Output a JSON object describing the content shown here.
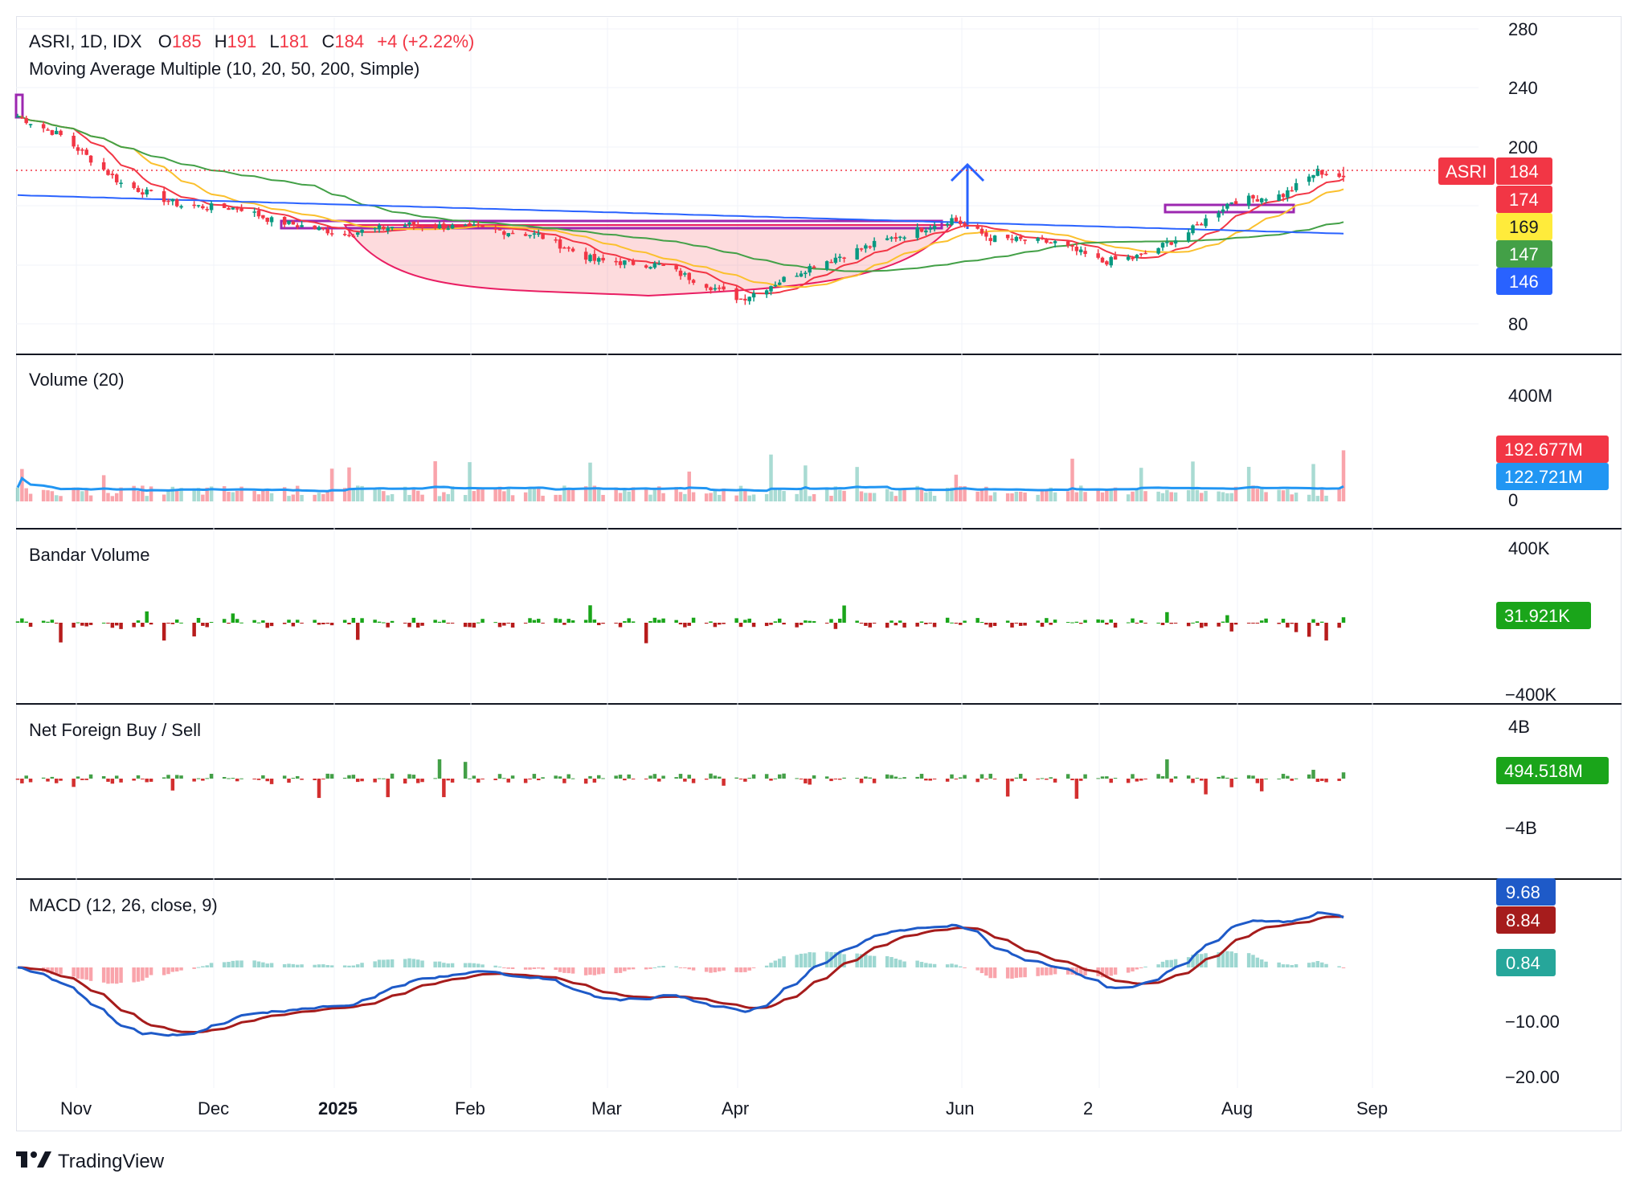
{
  "header": {
    "symbol_line_prefix": "ASRI, 1D, IDX",
    "open_label": "O",
    "open": "185",
    "high_label": "H",
    "high": "191",
    "low_label": "L",
    "low": "181",
    "close_label": "C",
    "close": "184",
    "change": "+4 (+2.22%)",
    "ma_title": "Moving Average Multiple (10, 20, 50, 200, Simple)"
  },
  "panes": {
    "volume_title": "Volume (20)",
    "bandar_title": "Bandar Volume",
    "foreign_title": "Net Foreign Buy / Sell",
    "macd_title": "MACD (12, 26, close, 9)"
  },
  "price_axis": [
    "280",
    "240",
    "200",
    "80"
  ],
  "volume_axis": [
    "400M",
    "0"
  ],
  "bandar_axis": [
    "400K",
    "−400K"
  ],
  "foreign_axis": [
    "4B",
    "−4B"
  ],
  "macd_axis": [
    "−10.00",
    "−20.00"
  ],
  "tags": {
    "symbol": "ASRI",
    "price": "184",
    "ma10": "174",
    "ma20": "169",
    "ma50": "147",
    "ma200": "146",
    "vol": "192.677M",
    "vol_ma": "122.721M",
    "bandar": "31.921K",
    "foreign": "494.518M",
    "macd": "9.68",
    "signal": "8.84",
    "hist": "0.84"
  },
  "x_axis": [
    "Nov",
    "Dec",
    "2025",
    "Feb",
    "Mar",
    "Apr",
    "Jun",
    "2",
    "Aug",
    "Sep"
  ],
  "branding": {
    "name": "TradingView"
  },
  "colors": {
    "up": "#089981",
    "down": "#f23645",
    "ma10": "#f23645",
    "ma20": "#fbc02d",
    "ma50": "#43a047",
    "ma200": "#2962ff",
    "vol_ma": "#2196f3",
    "bandar_up": "#1aa51a",
    "bandar_down": "#b71c1c",
    "foreign_up": "#43a047",
    "foreign_down": "#d32f2f",
    "macd": "#1e5ac8",
    "signal": "#a61c1c",
    "pattern": "#9c27b0",
    "arrow": "#2962ff"
  },
  "chart_data": [
    {
      "type": "candlestick",
      "title": "ASRI, 1D, IDX",
      "x_range": [
        "2024-10-22",
        "2025-08-26"
      ],
      "ylim": [
        80,
        280
      ],
      "price_path_nodes": [
        {
          "date": "2024-10-22",
          "close": 225
        },
        {
          "date": "2024-11-01",
          "close": 212
        },
        {
          "date": "2024-11-15",
          "close": 180
        },
        {
          "date": "2024-11-29",
          "close": 165
        },
        {
          "date": "2024-12-13",
          "close": 163
        },
        {
          "date": "2024-12-20",
          "close": 155
        },
        {
          "date": "2025-01-06",
          "close": 146
        },
        {
          "date": "2025-01-20",
          "close": 152
        },
        {
          "date": "2025-02-05",
          "close": 150
        },
        {
          "date": "2025-02-20",
          "close": 145
        },
        {
          "date": "2025-03-05",
          "close": 128
        },
        {
          "date": "2025-03-20",
          "close": 125
        },
        {
          "date": "2025-04-08",
          "close": 102
        },
        {
          "date": "2025-04-25",
          "close": 125
        },
        {
          "date": "2025-05-10",
          "close": 140
        },
        {
          "date": "2025-05-27",
          "close": 156
        },
        {
          "date": "2025-06-05",
          "close": 143
        },
        {
          "date": "2025-06-20",
          "close": 140
        },
        {
          "date": "2025-07-01",
          "close": 127
        },
        {
          "date": "2025-07-10",
          "close": 131
        },
        {
          "date": "2025-07-20",
          "close": 145
        },
        {
          "date": "2025-07-31",
          "close": 168
        },
        {
          "date": "2025-08-12",
          "close": 172
        },
        {
          "date": "2025-08-20",
          "close": 188
        },
        {
          "date": "2025-08-26",
          "close": 184
        }
      ],
      "last_bar": {
        "open": 185,
        "high": 191,
        "low": 181,
        "close": 184
      },
      "moving_averages": {
        "ma10": 174,
        "ma20": 169,
        "ma50": 147,
        "ma200": 146
      }
    },
    {
      "type": "bar",
      "title": "Volume (20)",
      "ylim": [
        0,
        400
      ],
      "unit": "M",
      "last": 192.677,
      "ma": 122.721
    },
    {
      "type": "bar",
      "title": "Bandar Volume",
      "ylim": [
        -400,
        400
      ],
      "unit": "K",
      "last": 31.921
    },
    {
      "type": "bar",
      "title": "Net Foreign Buy / Sell",
      "ylim": [
        -4,
        4
      ],
      "unit": "B",
      "last": 0.494518
    },
    {
      "type": "line",
      "title": "MACD (12, 26, close, 9)",
      "ylim": [
        -20,
        10
      ],
      "macd": 9.68,
      "signal": 8.84,
      "histogram": 0.84
    }
  ]
}
